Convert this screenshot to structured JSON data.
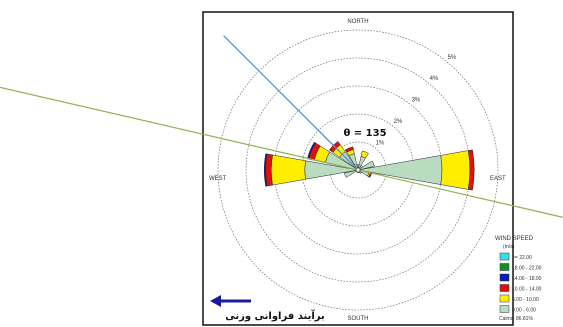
{
  "chart_data": {
    "type": "windrose",
    "directions": {
      "north": "NORTH",
      "south": "SOUTH",
      "east": "EAST",
      "west": "WEST"
    },
    "rings": [
      "1%",
      "2%",
      "3%",
      "4%",
      "5%"
    ],
    "theta_label": "θ = 135",
    "annotation": "برآیند فراوانی وزنی",
    "legend": {
      "title": "WIND SPEED",
      "unit": "(m/s)",
      "classes": [
        {
          "label": ">= 22.00",
          "color": "#33e0e8"
        },
        {
          "label": "18.00 - 22.00",
          "color": "#0f8f26"
        },
        {
          "label": "14.00 - 18.00",
          "color": "#0a1fb5"
        },
        {
          "label": "10.00 - 14.00",
          "color": "#e01010"
        },
        {
          "label": "6.00 - 10.00",
          "color": "#ffee00"
        },
        {
          "label": "0.00 - 6.00",
          "color": "#b9dcc0"
        }
      ],
      "calms": "Calms: 86.81%"
    },
    "petals": [
      {
        "direction": "E",
        "values": {
          "0.00 - 6.00": 3.0,
          "6.00 - 10.00": 1.0,
          "10.00 - 14.00": 0.15
        }
      },
      {
        "direction": "ESE",
        "values": {
          "0.00 - 6.00": 0.4,
          "6.00 - 10.00": 0.05,
          "10.00 - 14.00": 0.05
        }
      },
      {
        "direction": "SE",
        "values": {
          "0.00 - 6.00": 0.15
        }
      },
      {
        "direction": "SSE",
        "values": {
          "0.00 - 6.00": 0.1
        }
      },
      {
        "direction": "S",
        "values": {
          "0.00 - 6.00": 0.1
        }
      },
      {
        "direction": "SW",
        "values": {
          "0.00 - 6.00": 0.1
        }
      },
      {
        "direction": "WSW",
        "values": {
          "0.00 - 6.00": 0.5
        }
      },
      {
        "direction": "W",
        "values": {
          "0.00 - 6.00": 1.9,
          "6.00 - 10.00": 1.2,
          "10.00 - 14.00": 0.2,
          "14.00 - 18.00": 0.05
        }
      },
      {
        "direction": "WNW",
        "values": {
          "0.00 - 6.00": 1.2,
          "6.00 - 10.00": 0.4,
          "10.00 - 14.00": 0.2,
          "14.00 - 18.00": 0.05
        }
      },
      {
        "direction": "NW",
        "values": {
          "0.00 - 6.00": 0.8,
          "6.00 - 10.00": 0.3,
          "10.00 - 14.00": 0.15
        }
      },
      {
        "direction": "NNW",
        "values": {
          "0.00 - 6.00": 0.6,
          "6.00 - 10.00": 0.15,
          "10.00 - 14.00": 0.1
        }
      },
      {
        "direction": "N",
        "values": {
          "0.00 - 6.00": 0.2
        }
      },
      {
        "direction": "NNE",
        "values": {
          "0.00 - 6.00": 0.5,
          "6.00 - 10.00": 0.2
        }
      },
      {
        "direction": "NE",
        "values": {
          "0.00 - 6.00": 0.2
        }
      },
      {
        "direction": "ENE",
        "values": {
          "0.00 - 6.00": 0.6
        }
      }
    ],
    "lines": [
      {
        "kind": "resultant",
        "bearing_deg": 315,
        "color": "#5b8ec9"
      },
      {
        "kind": "axis",
        "bearing_deg": 103,
        "color": "#8fb24f"
      }
    ]
  }
}
